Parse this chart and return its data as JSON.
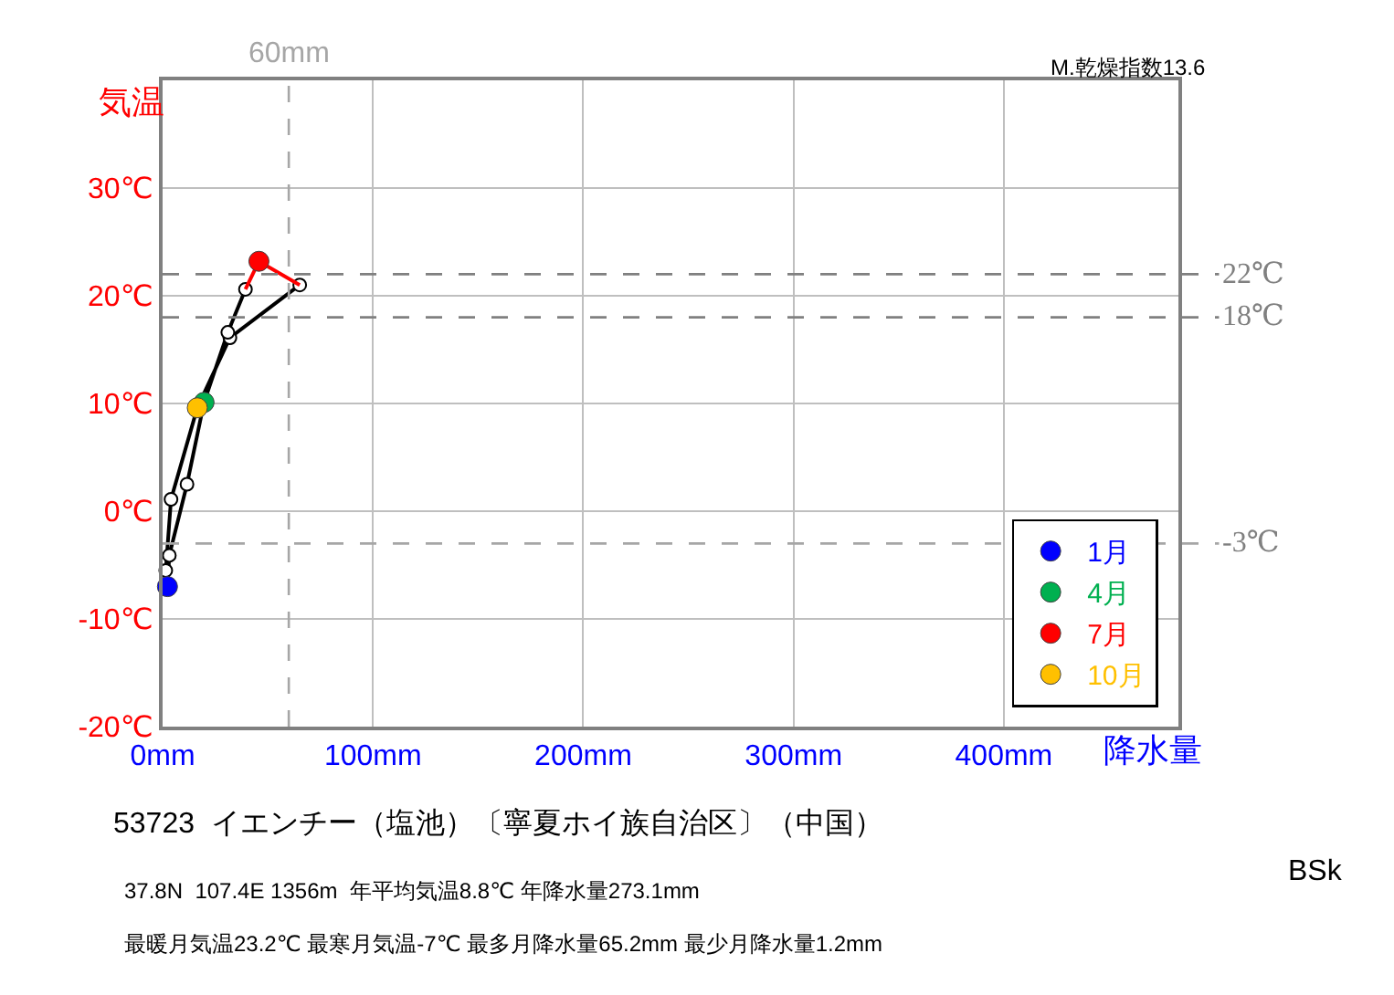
{
  "chart_data": {
    "type": "line",
    "xlabel": "降水量",
    "ylabel": "気温",
    "xlim": [
      0,
      483
    ],
    "ylim": [
      -20,
      40
    ],
    "xticks": [
      {
        "value": 0,
        "label": "0mm"
      },
      {
        "value": 100,
        "label": "100mm"
      },
      {
        "value": 200,
        "label": "200mm"
      },
      {
        "value": 300,
        "label": "300mm"
      },
      {
        "value": 400,
        "label": "400mm"
      }
    ],
    "yticks": [
      {
        "value": -20,
        "label": "-20℃"
      },
      {
        "value": -10,
        "label": "-10℃"
      },
      {
        "value": 0,
        "label": "0℃"
      },
      {
        "value": 10,
        "label": "10℃"
      },
      {
        "value": 20,
        "label": "20℃"
      },
      {
        "value": 30,
        "label": "30℃"
      }
    ],
    "grid": true,
    "legend": "bottom right",
    "series": [
      {
        "color": "#000000",
        "marker": "circle",
        "x": [
          65.2,
          32,
          16.5,
          4,
          1.5,
          2.3,
          3.2,
          11.6,
          19.7,
          31,
          39.4
        ],
        "values": [
          21.0,
          16.1,
          9.6,
          1.1,
          -5.5,
          -7.0,
          -4.1,
          2.5,
          10.1,
          16.6,
          20.6
        ]
      },
      {
        "type": "line",
        "color": "#ff0000",
        "marker": "none",
        "x": [
          39.4,
          45.8,
          65.2
        ],
        "values": [
          20.6,
          23.2,
          21.0
        ]
      },
      {
        "type": "scatter",
        "name": "1月",
        "color": "#0000ff",
        "marker": "circle",
        "x": [
          2.3
        ],
        "values": [
          -7.0
        ]
      },
      {
        "type": "scatter",
        "name": "4月",
        "color": "#00b050",
        "marker": "circle",
        "x": [
          19.7
        ],
        "values": [
          10.1
        ]
      },
      {
        "type": "scatter",
        "name": "7月",
        "color": "#ff0000",
        "marker": "circle",
        "x": [
          45.8
        ],
        "values": [
          23.2
        ]
      },
      {
        "type": "scatter",
        "name": "10月",
        "color": "#ffc000",
        "marker": "circle",
        "x": [
          16.5
        ],
        "values": [
          9.6
        ]
      }
    ],
    "ref_lines": [
      {
        "axis": "x",
        "value": 60,
        "label": "60mm",
        "color": "#a6a6a6",
        "line_style": "dashed"
      },
      {
        "axis": "y",
        "value": 22,
        "label": "22℃",
        "color": "#808080",
        "line_style": "dashed"
      },
      {
        "axis": "y",
        "value": 18,
        "label": "18℃",
        "color": "#808080",
        "line_style": "dashed"
      },
      {
        "axis": "y",
        "value": -3,
        "label": "-3℃",
        "color": "#a6a6a6",
        "line_style": "dashed"
      }
    ],
    "annotations": [
      "M.乾燥指数13.6",
      "53723  イエンチー（塩池）〔寧夏ホイ族自治区〕（中国）",
      "37.8N  107.4E 1356m  年平均気温8.8℃ 年降水量273.1mm",
      "最暖月気温23.2℃ 最寒月気温-7℃ 最多月降水量65.2mm 最少月降水量1.2mm",
      "BSk"
    ]
  }
}
